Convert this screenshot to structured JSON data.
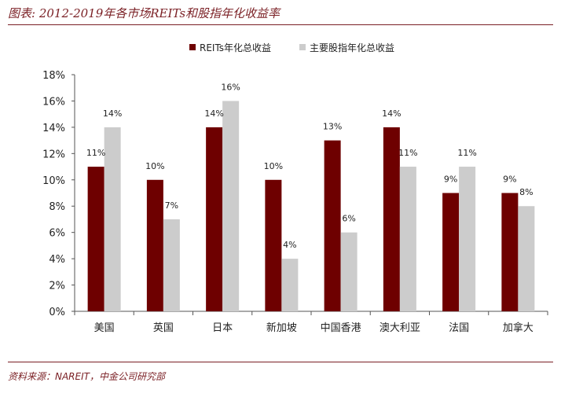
{
  "title": "图表: 2012-2019年各市场REITs和股指年化收益率",
  "source": "资料来源：NAREIT，中金公司研究部",
  "chart_data": {
    "type": "bar",
    "categories": [
      "美国",
      "英国",
      "日本",
      "新加坡",
      "中国香港",
      "澳大利亚",
      "法国",
      "加拿大"
    ],
    "series": [
      {
        "name": "REITs年化总收益",
        "color": "#6e0000",
        "values": [
          11,
          10,
          14,
          10,
          13,
          14,
          9,
          9
        ],
        "labels": [
          "11%",
          "10%",
          "14%",
          "10%",
          "13%",
          "14%",
          "9%",
          "9%"
        ]
      },
      {
        "name": "主要股指年化总收益",
        "color": "#cccccc",
        "values": [
          14,
          7,
          16,
          4,
          6,
          11,
          11,
          8
        ],
        "labels": [
          "14%",
          "7%",
          "16%",
          "4%",
          "6%",
          "11%",
          "11%",
          "8%"
        ]
      }
    ],
    "yticks": [
      "0%",
      "2%",
      "4%",
      "6%",
      "8%",
      "10%",
      "12%",
      "14%",
      "16%",
      "18%"
    ],
    "ylim": [
      0,
      18
    ],
    "legend_position": "top-center",
    "grid": false
  }
}
